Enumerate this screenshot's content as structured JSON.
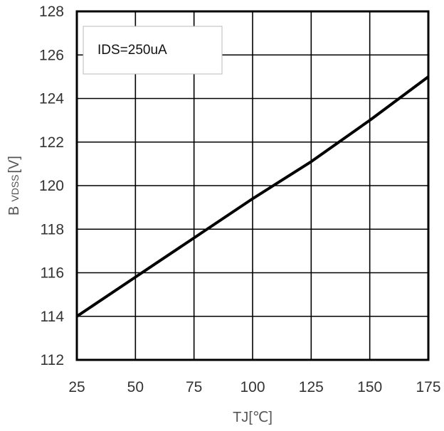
{
  "chart_data": {
    "type": "line",
    "x": [
      25,
      50,
      75,
      100,
      125,
      150,
      175
    ],
    "series": [
      {
        "values": [
          114.0,
          115.8,
          117.6,
          119.4,
          121.1,
          123.0,
          125.0
        ],
        "color": "#000000"
      }
    ],
    "xlabel_main": "TJ",
    "xlabel_unit": "[℃]",
    "ylabel_main": "B",
    "ylabel_sub": "VDSS",
    "ylabel_unit": "[V]",
    "xlim": [
      25,
      175
    ],
    "ylim": [
      112,
      128
    ],
    "x_ticks": [
      25,
      50,
      75,
      100,
      125,
      150,
      175
    ],
    "y_ticks": [
      112,
      114,
      116,
      118,
      120,
      122,
      124,
      126,
      128
    ],
    "grid": true,
    "annotation": "IDS=250uA",
    "colors": {
      "line": "#000000",
      "grid": "#000000",
      "frame": "#000000",
      "annotation_border": "#bbbbbb"
    }
  }
}
